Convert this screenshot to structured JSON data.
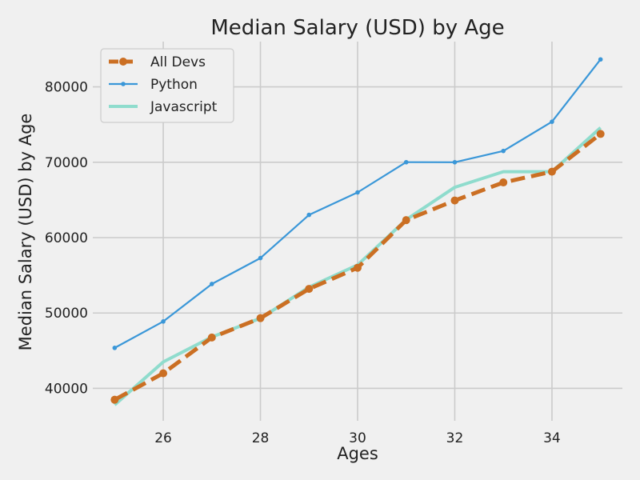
{
  "chart_data": {
    "type": "line",
    "title": "Median Salary (USD) by Age",
    "xlabel": "Ages",
    "ylabel": "Median Salary (USD) by Age",
    "x": [
      25,
      26,
      27,
      28,
      29,
      30,
      31,
      32,
      33,
      34,
      35
    ],
    "xlim": [
      24.55,
      35.45
    ],
    "ylim": [
      35700,
      86000
    ],
    "xticks": [
      26,
      28,
      30,
      32,
      34
    ],
    "yticks": [
      40000,
      50000,
      60000,
      70000,
      80000
    ],
    "grid": true,
    "legend_position": "top-left",
    "series": [
      {
        "name": "Javascript",
        "color": "#8fdccd",
        "style": "solid",
        "marker": "none",
        "values": [
          37810,
          43515,
          46823,
          49293,
          53437,
          56373,
          62375,
          66674,
          68745,
          68746,
          74583
        ]
      },
      {
        "name": "All Devs",
        "color": "#cb6f23",
        "style": "dashed",
        "marker": "circle",
        "values": [
          38496,
          42000,
          46752,
          49320,
          53200,
          56000,
          62316,
          64928,
          67317,
          68748,
          73752
        ]
      },
      {
        "name": "Python",
        "color": "#3a97d8",
        "style": "solid",
        "marker": "dot",
        "values": [
          45372,
          48876,
          53850,
          57287,
          63016,
          65998,
          70003,
          70000,
          71496,
          75370,
          83640
        ]
      }
    ],
    "legend_order": [
      "All Devs",
      "Python",
      "Javascript"
    ]
  }
}
